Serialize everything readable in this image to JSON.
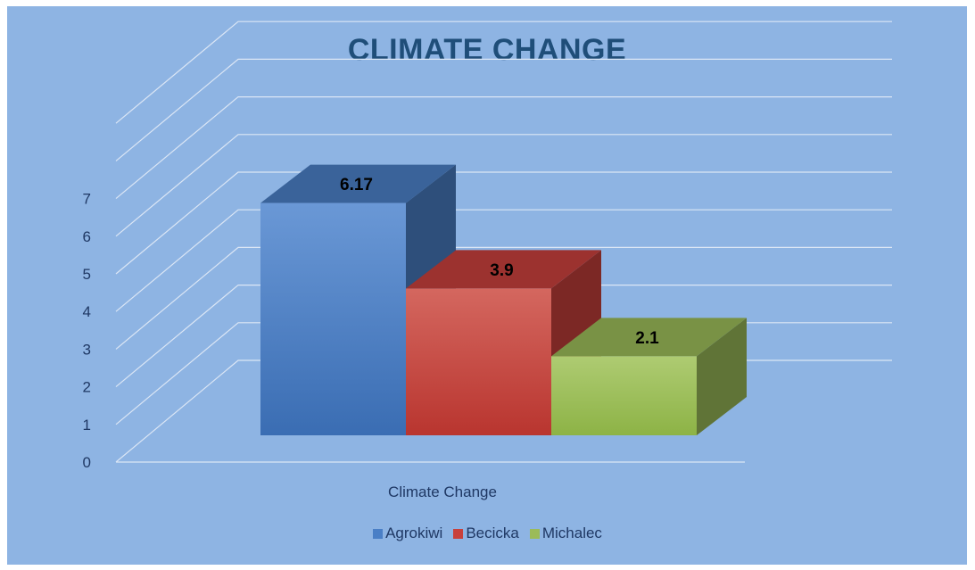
{
  "chart_data": {
    "type": "bar",
    "title": "CLIMATE CHANGE",
    "categories": [
      "Climate  Change"
    ],
    "series": [
      {
        "name": "Agrokiwi",
        "values": [
          6.17
        ],
        "color": "#4a7fc6"
      },
      {
        "name": "Becicka",
        "values": [
          3.9
        ],
        "color": "#c8403c"
      },
      {
        "name": "Michalec",
        "values": [
          2.1
        ],
        "color": "#9bbb59"
      }
    ],
    "data_labels": [
      "6.17",
      "3.9",
      "2.1"
    ],
    "yticks": [
      "0",
      "1",
      "2",
      "3",
      "4",
      "5",
      "6",
      "7"
    ],
    "ylim": [
      0,
      9
    ],
    "grid": true,
    "legend_position": "bottom",
    "style": "3d-column",
    "background": "#8eb4e3"
  }
}
